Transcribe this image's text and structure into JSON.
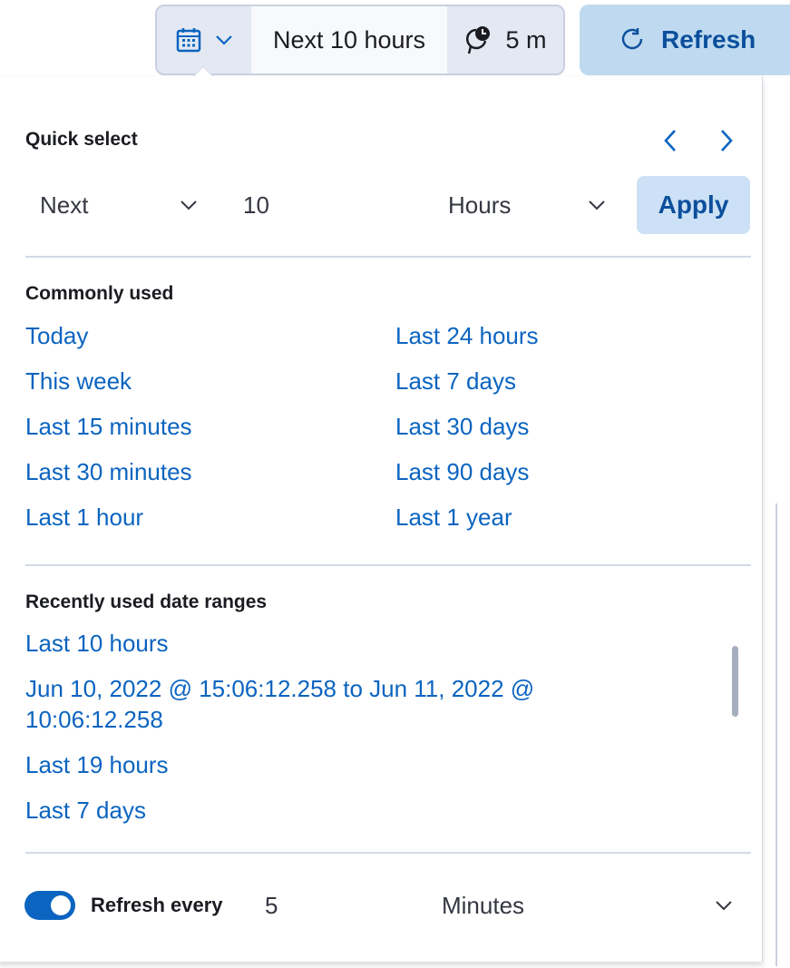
{
  "header": {
    "range_label": "Next 10 hours",
    "refresh_interval": "5 m",
    "refresh_button": "Refresh"
  },
  "quick_select": {
    "title": "Quick select",
    "direction": "Next",
    "amount": "10",
    "unit": "Hours",
    "apply": "Apply"
  },
  "commonly_used": {
    "title": "Commonly used",
    "items": [
      "Today",
      "Last 24 hours",
      "This week",
      "Last 7 days",
      "Last 15 minutes",
      "Last 30 days",
      "Last 30 minutes",
      "Last 90 days",
      "Last 1 hour",
      "Last 1 year"
    ]
  },
  "recent": {
    "title": "Recently used date ranges",
    "items": [
      "Last 10 hours",
      "Jun 10, 2022 @ 15:06:12.258 to Jun 11, 2022 @ 10:06:12.258",
      "Last 19 hours",
      "Last 7 days"
    ]
  },
  "refresh": {
    "label": "Refresh every",
    "value": "5",
    "unit": "Minutes",
    "enabled": true
  },
  "colors": {
    "link": "#0b64c0",
    "accent_button": "#bfdaf0",
    "toggle": "#0b64c0"
  }
}
